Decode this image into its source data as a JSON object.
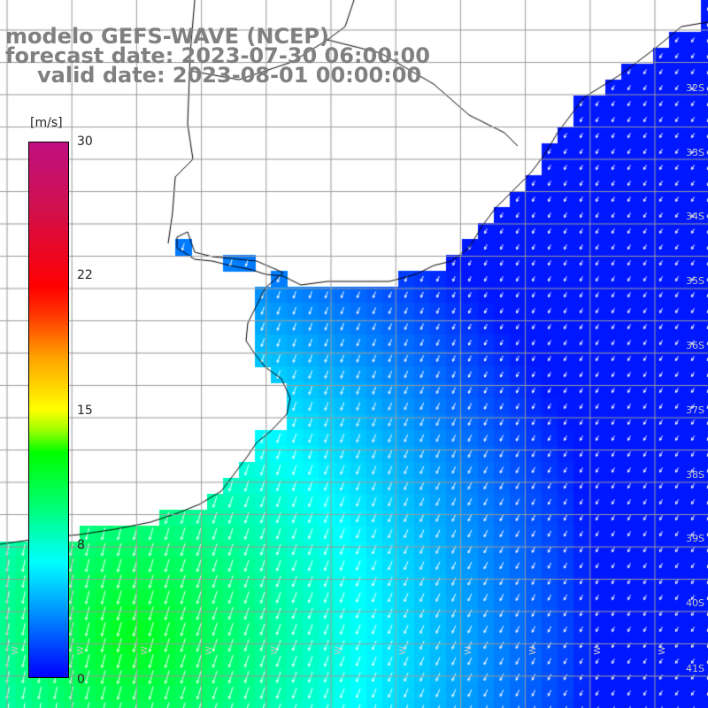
{
  "title": {
    "line1": "modelo GEFS-WAVE (NCEP)",
    "line2": "forecast date: 2023-07-30 06:00:00",
    "line3": "valid date: 2023-08-01 00:00:00"
  },
  "colorbar": {
    "unit": "[m/s]",
    "ticks": [
      "30",
      "22",
      "15",
      "8",
      "0"
    ],
    "min": 0,
    "max": 30
  },
  "lat_labels": [
    "32S",
    "33S",
    "34S",
    "35S",
    "36S",
    "37S",
    "38S",
    "39S",
    "40S",
    "41S"
  ],
  "lon_labels": [
    "W",
    "W",
    "W",
    "W",
    "W",
    "W",
    "W",
    "W",
    "W",
    "W",
    "W"
  ],
  "colors": {
    "grid": "#9a9a9a",
    "land": "#ffffff",
    "coast": "#000000",
    "arrow": "#ffffff"
  }
}
